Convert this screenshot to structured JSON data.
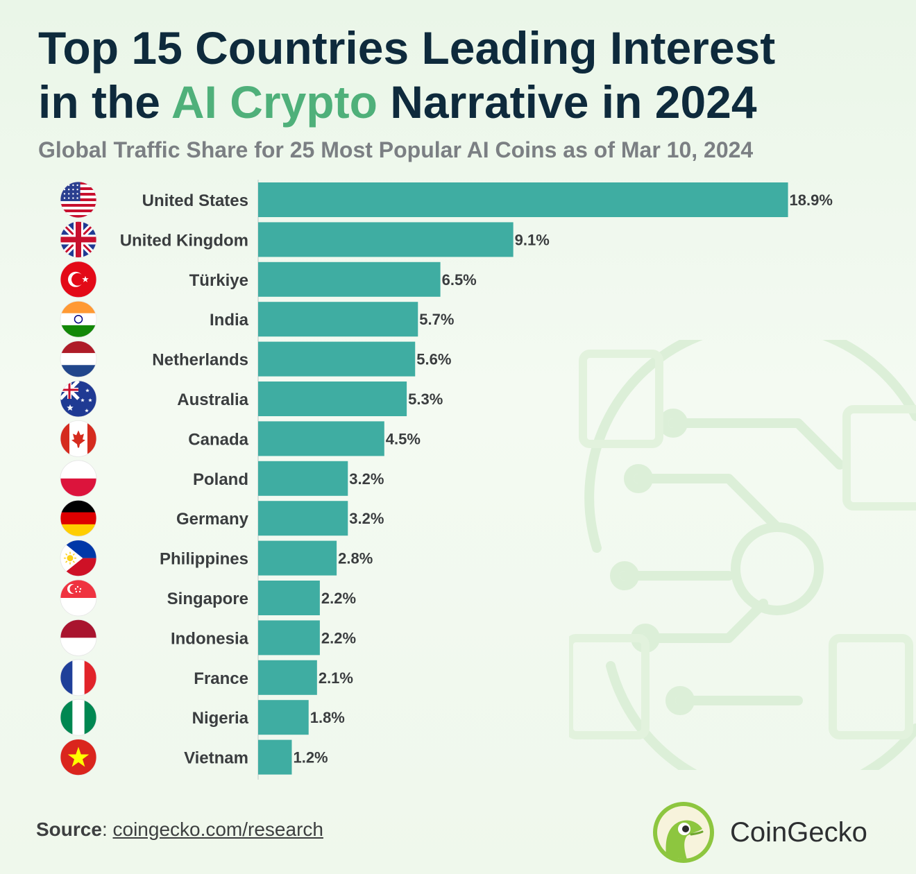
{
  "title": {
    "line1": "Top 15 Countries Leading Interest",
    "prefix": "in the",
    "accent": "AI Crypto",
    "suffix": "Narrative in 2024"
  },
  "subtitle": "Global Traffic Share for 25 Most Popular AI Coins as of Mar 10, 2024",
  "chart_data": {
    "type": "bar",
    "orientation": "horizontal",
    "title": "Top 15 Countries Leading Interest in the AI Crypto Narrative in 2024",
    "subtitle": "Global Traffic Share for 25 Most Popular AI Coins as of Mar 10, 2024",
    "xlabel": "",
    "ylabel": "",
    "xlim": [
      0,
      20
    ],
    "unit": "%",
    "bar_color": "#3fada2",
    "grid": false,
    "categories": [
      "United States",
      "United Kingdom",
      "Türkiye",
      "India",
      "Netherlands",
      "Australia",
      "Canada",
      "Poland",
      "Germany",
      "Philippines",
      "Singapore",
      "Indonesia",
      "France",
      "Nigeria",
      "Vietnam"
    ],
    "values": [
      18.9,
      9.1,
      6.5,
      5.7,
      5.6,
      5.3,
      4.5,
      3.2,
      3.2,
      2.8,
      2.2,
      2.2,
      2.1,
      1.8,
      1.2
    ],
    "value_labels": [
      "18.9%",
      "9.1%",
      "6.5%",
      "5.7%",
      "5.6%",
      "5.3%",
      "4.5%",
      "3.2%",
      "3.2%",
      "2.8%",
      "2.2%",
      "2.2%",
      "2.1%",
      "1.8%",
      "1.2%"
    ],
    "flags": [
      "us",
      "uk",
      "tr",
      "in",
      "nl",
      "au",
      "ca",
      "pl",
      "de",
      "ph",
      "sg",
      "id",
      "fr",
      "ng",
      "vn"
    ]
  },
  "footer": {
    "source_label": "Source",
    "source_separator": ":",
    "source_link": "coingecko.com/research",
    "brand": "CoinGecko"
  }
}
